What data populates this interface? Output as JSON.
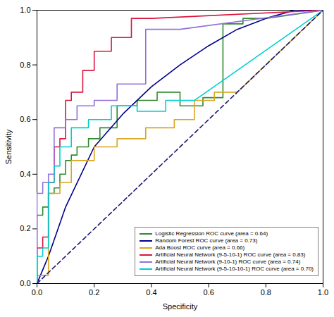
{
  "chart_data": {
    "type": "line",
    "xlabel": "Specificity",
    "ylabel": "Sensitivity",
    "xlim": [
      0.0,
      1.0
    ],
    "ylim": [
      0.0,
      1.0
    ],
    "xticks": [
      {
        "value": 0.0,
        "label": "0.0"
      },
      0.2,
      0.4,
      0.6,
      0.8,
      {
        "value": 1.0,
        "label": "1.0"
      }
    ],
    "yticks": [
      {
        "value": 0.0,
        "label": "0.0"
      },
      0.2,
      0.4,
      0.6,
      0.8,
      {
        "value": 1.0,
        "label": "1.0"
      }
    ],
    "grid": false,
    "legend": "lower right",
    "series": [
      {
        "name": "Logistic Regression ROC curve (area = 0.64)",
        "color": "#2e8b2e",
        "line_style": "solid",
        "x": [
          0.0,
          0.0,
          0.02,
          0.02,
          0.04,
          0.04,
          0.06,
          0.06,
          0.08,
          0.08,
          0.1,
          0.1,
          0.12,
          0.12,
          0.14,
          0.14,
          0.18,
          0.18,
          0.22,
          0.22,
          0.28,
          0.28,
          0.35,
          0.35,
          0.42,
          0.42,
          0.5,
          0.5,
          0.58,
          0.58,
          0.65,
          0.65,
          0.72,
          0.72,
          0.8,
          1.0
        ],
        "values": [
          0.0,
          0.25,
          0.25,
          0.28,
          0.28,
          0.33,
          0.33,
          0.35,
          0.35,
          0.4,
          0.4,
          0.45,
          0.45,
          0.47,
          0.47,
          0.5,
          0.5,
          0.53,
          0.53,
          0.57,
          0.57,
          0.65,
          0.65,
          0.67,
          0.67,
          0.7,
          0.7,
          0.65,
          0.65,
          0.68,
          0.68,
          0.95,
          0.95,
          0.97,
          0.97,
          1.0
        ]
      },
      {
        "name": "Random Forest ROC curve (area = 0.73)",
        "color": "#00008b",
        "line_style": "solid",
        "x": [
          0.0,
          0.02,
          0.04,
          0.06,
          0.08,
          0.1,
          0.2,
          0.3,
          0.4,
          0.5,
          0.6,
          0.7,
          0.8,
          0.9,
          1.0
        ],
        "values": [
          0.0,
          0.05,
          0.1,
          0.16,
          0.22,
          0.28,
          0.5,
          0.62,
          0.72,
          0.8,
          0.87,
          0.93,
          0.97,
          1.0,
          1.0
        ]
      },
      {
        "name": "Ada Boost ROC curve (area = 0.66)",
        "color": "#daa520",
        "line_style": "solid",
        "x": [
          0.0,
          0.0,
          0.04,
          0.04,
          0.08,
          0.08,
          0.12,
          0.12,
          0.2,
          0.2,
          0.28,
          0.28,
          0.38,
          0.38,
          0.48,
          0.48,
          0.55,
          0.55,
          0.62,
          0.62,
          0.7,
          1.0
        ],
        "values": [
          0.0,
          0.03,
          0.03,
          0.33,
          0.33,
          0.37,
          0.37,
          0.45,
          0.45,
          0.5,
          0.5,
          0.53,
          0.53,
          0.57,
          0.57,
          0.6,
          0.6,
          0.67,
          0.67,
          0.7,
          0.7,
          1.0
        ]
      },
      {
        "name": "Artificial Neural Network (9-5-10-1) ROC curve (area = 0.83)",
        "color": "#dc143c",
        "line_style": "solid",
        "x": [
          0.0,
          0.0,
          0.02,
          0.02,
          0.04,
          0.04,
          0.06,
          0.06,
          0.08,
          0.08,
          0.1,
          0.1,
          0.12,
          0.12,
          0.16,
          0.16,
          0.2,
          0.2,
          0.26,
          0.26,
          0.33,
          0.33,
          0.4,
          1.0
        ],
        "values": [
          0.0,
          0.13,
          0.13,
          0.17,
          0.17,
          0.37,
          0.37,
          0.5,
          0.5,
          0.53,
          0.53,
          0.67,
          0.67,
          0.7,
          0.7,
          0.78,
          0.78,
          0.85,
          0.85,
          0.9,
          0.9,
          0.97,
          0.97,
          1.0
        ]
      },
      {
        "name": "Artificial Neural Network (9-10-1) ROC curve (area = 0.74)",
        "color": "#9370db",
        "line_style": "solid",
        "x": [
          0.0,
          0.0,
          0.02,
          0.02,
          0.04,
          0.04,
          0.06,
          0.06,
          0.1,
          0.1,
          0.14,
          0.14,
          0.2,
          0.2,
          0.28,
          0.28,
          0.38,
          0.38,
          0.5,
          1.0
        ],
        "values": [
          0.0,
          0.33,
          0.33,
          0.37,
          0.37,
          0.4,
          0.4,
          0.57,
          0.57,
          0.6,
          0.6,
          0.65,
          0.65,
          0.67,
          0.67,
          0.73,
          0.73,
          0.93,
          0.93,
          1.0
        ]
      },
      {
        "name": "Artificial Neural Network (9-5-10-10-1) ROC curve (area = 0.70)",
        "color": "#00ced1",
        "line_style": "solid",
        "x": [
          0.0,
          0.0,
          0.02,
          0.02,
          0.04,
          0.04,
          0.06,
          0.06,
          0.08,
          0.08,
          0.12,
          0.12,
          0.18,
          0.18,
          0.26,
          0.26,
          0.35,
          0.35,
          0.45,
          0.45,
          0.55,
          1.0
        ],
        "values": [
          0.0,
          0.1,
          0.1,
          0.13,
          0.13,
          0.37,
          0.37,
          0.43,
          0.43,
          0.5,
          0.5,
          0.57,
          0.57,
          0.6,
          0.6,
          0.65,
          0.65,
          0.63,
          0.63,
          0.67,
          0.67,
          1.0
        ]
      },
      {
        "color": "#191970",
        "line_style": "dashed",
        "x": [
          0,
          1
        ],
        "values": [
          0,
          1
        ]
      }
    ]
  }
}
